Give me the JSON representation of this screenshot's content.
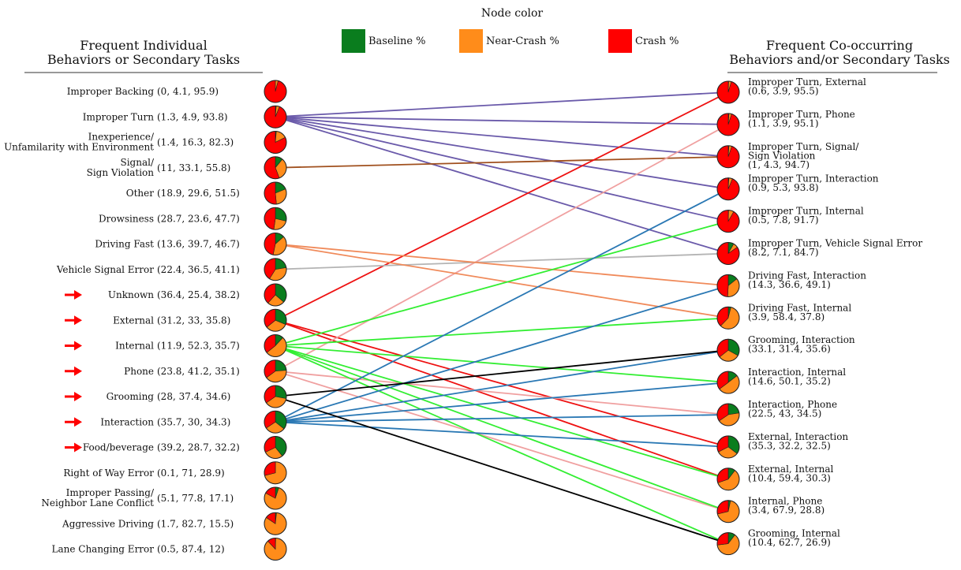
{
  "legend": {
    "title": "Node color",
    "items": [
      {
        "label": "Baseline %",
        "color": "#0a7d1e"
      },
      {
        "label": "Near-Crash %",
        "color": "#ff8c1a"
      },
      {
        "label": "Crash %",
        "color": "#ff0000"
      }
    ]
  },
  "left_header": [
    "Frequent Individual",
    "Behaviors or Secondary Tasks"
  ],
  "right_header": [
    "Frequent Co-occurring",
    "Behaviors and/or Secondary Tasks"
  ],
  "left_nodes": [
    {
      "id": "L0",
      "label": [
        "Improper Backing"
      ],
      "values_text": "(0, 4.1, 95.9)",
      "pie": [
        0,
        4.1,
        95.9
      ]
    },
    {
      "id": "L1",
      "label": [
        "Improper Turn"
      ],
      "values_text": "(1.3, 4.9, 93.8)",
      "pie": [
        1.3,
        4.9,
        93.8
      ]
    },
    {
      "id": "L2",
      "label": [
        "Inexperience/",
        "Unfamilarity with Environment"
      ],
      "values_text": "(1.4, 16.3, 82.3)",
      "pie": [
        1.4,
        16.3,
        82.3
      ]
    },
    {
      "id": "L3",
      "label": [
        "Signal/",
        "Sign Violation"
      ],
      "values_text": "(11, 33.1, 55.8)",
      "pie": [
        11,
        33.1,
        55.8
      ]
    },
    {
      "id": "L4",
      "label": [
        "Other"
      ],
      "values_text": "(18.9, 29.6, 51.5)",
      "pie": [
        18.9,
        29.6,
        51.5
      ]
    },
    {
      "id": "L5",
      "label": [
        "Drowsiness"
      ],
      "values_text": "(28.7, 23.6, 47.7)",
      "pie": [
        28.7,
        23.6,
        47.7
      ]
    },
    {
      "id": "L6",
      "label": [
        "Driving Fast"
      ],
      "values_text": "(13.6, 39.7, 46.7)",
      "pie": [
        13.6,
        39.7,
        46.7
      ]
    },
    {
      "id": "L7",
      "label": [
        "Vehicle Signal Error"
      ],
      "values_text": "(22.4, 36.5, 41.1)",
      "pie": [
        22.4,
        36.5,
        41.1
      ]
    },
    {
      "id": "L8",
      "label": [
        "Unknown"
      ],
      "values_text": "(36.4, 25.4, 38.2)",
      "pie": [
        36.4,
        25.4,
        38.2
      ],
      "arrow": true
    },
    {
      "id": "L9",
      "label": [
        "External"
      ],
      "values_text": "(31.2, 33, 35.8)",
      "pie": [
        31.2,
        33,
        35.8
      ],
      "arrow": true
    },
    {
      "id": "L10",
      "label": [
        "Internal"
      ],
      "values_text": "(11.9, 52.3, 35.7)",
      "pie": [
        11.9,
        52.3,
        35.7
      ],
      "arrow": true
    },
    {
      "id": "L11",
      "label": [
        "Phone"
      ],
      "values_text": "(23.8, 41.2, 35.1)",
      "pie": [
        23.8,
        41.2,
        35.1
      ],
      "arrow": true
    },
    {
      "id": "L12",
      "label": [
        "Grooming"
      ],
      "values_text": "(28, 37.4, 34.6)",
      "pie": [
        28,
        37.4,
        34.6
      ],
      "arrow": true
    },
    {
      "id": "L13",
      "label": [
        "Interaction"
      ],
      "values_text": "(35.7, 30, 34.3)",
      "pie": [
        35.7,
        30,
        34.3
      ],
      "arrow": true
    },
    {
      "id": "L14",
      "label": [
        "Food/beverage"
      ],
      "values_text": "(39.2, 28.7, 32.2)",
      "pie": [
        39.2,
        28.7,
        32.2
      ],
      "arrow": true
    },
    {
      "id": "L15",
      "label": [
        "Right of Way Error"
      ],
      "values_text": "(0.1, 71, 28.9)",
      "pie": [
        0.1,
        71,
        28.9
      ]
    },
    {
      "id": "L16",
      "label": [
        "Improper Passing/",
        "Neighbor Lane Conflict"
      ],
      "values_text": "(5.1, 77.8, 17.1)",
      "pie": [
        5.1,
        77.8,
        17.1
      ]
    },
    {
      "id": "L17",
      "label": [
        "Aggressive Driving"
      ],
      "values_text": "(1.7, 82.7, 15.5)",
      "pie": [
        1.7,
        82.7,
        15.5
      ]
    },
    {
      "id": "L18",
      "label": [
        "Lane Changing Error"
      ],
      "values_text": "(0.5, 87.4, 12)",
      "pie": [
        0.5,
        87.4,
        12
      ]
    }
  ],
  "right_nodes": [
    {
      "id": "R0",
      "label": [
        "Improper Turn, External",
        "(0.6, 3.9, 95.5)"
      ],
      "pie": [
        0.6,
        3.9,
        95.5
      ]
    },
    {
      "id": "R1",
      "label": [
        "Improper Turn, Phone",
        "(1.1, 3.9, 95.1)"
      ],
      "pie": [
        1.1,
        3.9,
        95.1
      ]
    },
    {
      "id": "R2",
      "label": [
        "Improper Turn, Signal/",
        "Sign Violation",
        "(1, 4.3, 94.7)"
      ],
      "pie": [
        1,
        4.3,
        94.7
      ]
    },
    {
      "id": "R3",
      "label": [
        "Improper Turn, Interaction",
        "(0.9, 5.3, 93.8)"
      ],
      "pie": [
        0.9,
        5.3,
        93.8
      ]
    },
    {
      "id": "R4",
      "label": [
        "Improper Turn, Internal",
        "(0.5, 7.8, 91.7)"
      ],
      "pie": [
        0.5,
        7.8,
        91.7
      ]
    },
    {
      "id": "R5",
      "label": [
        "Improper Turn, Vehicle Signal Error",
        "(8.2, 7.1, 84.7)"
      ],
      "pie": [
        8.2,
        7.1,
        84.7
      ]
    },
    {
      "id": "R6",
      "label": [
        "Driving Fast, Interaction",
        "(14.3, 36.6, 49.1)"
      ],
      "pie": [
        14.3,
        36.6,
        49.1
      ]
    },
    {
      "id": "R7",
      "label": [
        "Driving Fast, Internal",
        "(3.9, 58.4, 37.8)"
      ],
      "pie": [
        3.9,
        58.4,
        37.8
      ]
    },
    {
      "id": "R8",
      "label": [
        "Grooming, Interaction",
        "(33.1, 31.4, 35.6)"
      ],
      "pie": [
        33.1,
        31.4,
        35.6
      ]
    },
    {
      "id": "R9",
      "label": [
        "Interaction, Internal",
        "(14.6, 50.1, 35.2)"
      ],
      "pie": [
        14.6,
        50.1,
        35.2
      ]
    },
    {
      "id": "R10",
      "label": [
        "Interaction, Phone",
        "(22.5, 43, 34.5)"
      ],
      "pie": [
        22.5,
        43,
        34.5
      ]
    },
    {
      "id": "R11",
      "label": [
        "External, Interaction",
        "(35.3, 32.2, 32.5)"
      ],
      "pie": [
        35.3,
        32.2,
        32.5
      ]
    },
    {
      "id": "R12",
      "label": [
        "External, Internal",
        "(10.4, 59.4, 30.3)"
      ],
      "pie": [
        10.4,
        59.4,
        30.3
      ]
    },
    {
      "id": "R13",
      "label": [
        "Internal, Phone",
        "(3.4, 67.9, 28.8)"
      ],
      "pie": [
        3.4,
        67.9,
        28.8
      ]
    },
    {
      "id": "R14",
      "label": [
        "Grooming, Internal",
        "(10.4, 62.7, 26.9)"
      ],
      "pie": [
        10.4,
        62.7,
        26.9
      ]
    }
  ],
  "edges": [
    {
      "from": "L1",
      "to": "R0",
      "color": "#6a5aaa"
    },
    {
      "from": "L1",
      "to": "R1",
      "color": "#6a5aaa"
    },
    {
      "from": "L1",
      "to": "R2",
      "color": "#6a5aaa"
    },
    {
      "from": "L1",
      "to": "R3",
      "color": "#6a5aaa"
    },
    {
      "from": "L1",
      "to": "R4",
      "color": "#6a5aaa"
    },
    {
      "from": "L1",
      "to": "R5",
      "color": "#6a5aaa"
    },
    {
      "from": "L3",
      "to": "R2",
      "color": "#a0501e"
    },
    {
      "from": "L9",
      "to": "R0",
      "color": "#ee1111"
    },
    {
      "from": "L9",
      "to": "R11",
      "color": "#ee1111"
    },
    {
      "from": "L9",
      "to": "R12",
      "color": "#ee1111"
    },
    {
      "from": "L11",
      "to": "R1",
      "color": "#f0a0a0"
    },
    {
      "from": "L11",
      "to": "R10",
      "color": "#f0a0a0"
    },
    {
      "from": "L11",
      "to": "R13",
      "color": "#f0a0a0"
    },
    {
      "from": "L7",
      "to": "R5",
      "color": "#b4b4b4"
    },
    {
      "from": "L6",
      "to": "R6",
      "color": "#f08a5a"
    },
    {
      "from": "L6",
      "to": "R7",
      "color": "#f08a5a"
    },
    {
      "from": "L10",
      "to": "R4",
      "color": "#33ee33"
    },
    {
      "from": "L10",
      "to": "R7",
      "color": "#33ee33"
    },
    {
      "from": "L10",
      "to": "R9",
      "color": "#33ee33"
    },
    {
      "from": "L10",
      "to": "R12",
      "color": "#33ee33"
    },
    {
      "from": "L10",
      "to": "R13",
      "color": "#33ee33"
    },
    {
      "from": "L10",
      "to": "R14",
      "color": "#33ee33"
    },
    {
      "from": "L13",
      "to": "R3",
      "color": "#2a78b4"
    },
    {
      "from": "L13",
      "to": "R6",
      "color": "#2a78b4"
    },
    {
      "from": "L13",
      "to": "R8",
      "color": "#2a78b4"
    },
    {
      "from": "L13",
      "to": "R9",
      "color": "#2a78b4"
    },
    {
      "from": "L13",
      "to": "R10",
      "color": "#2a78b4"
    },
    {
      "from": "L13",
      "to": "R11",
      "color": "#2a78b4"
    },
    {
      "from": "L12",
      "to": "R8",
      "color": "#000000"
    },
    {
      "from": "L12",
      "to": "R14",
      "color": "#000000"
    }
  ]
}
